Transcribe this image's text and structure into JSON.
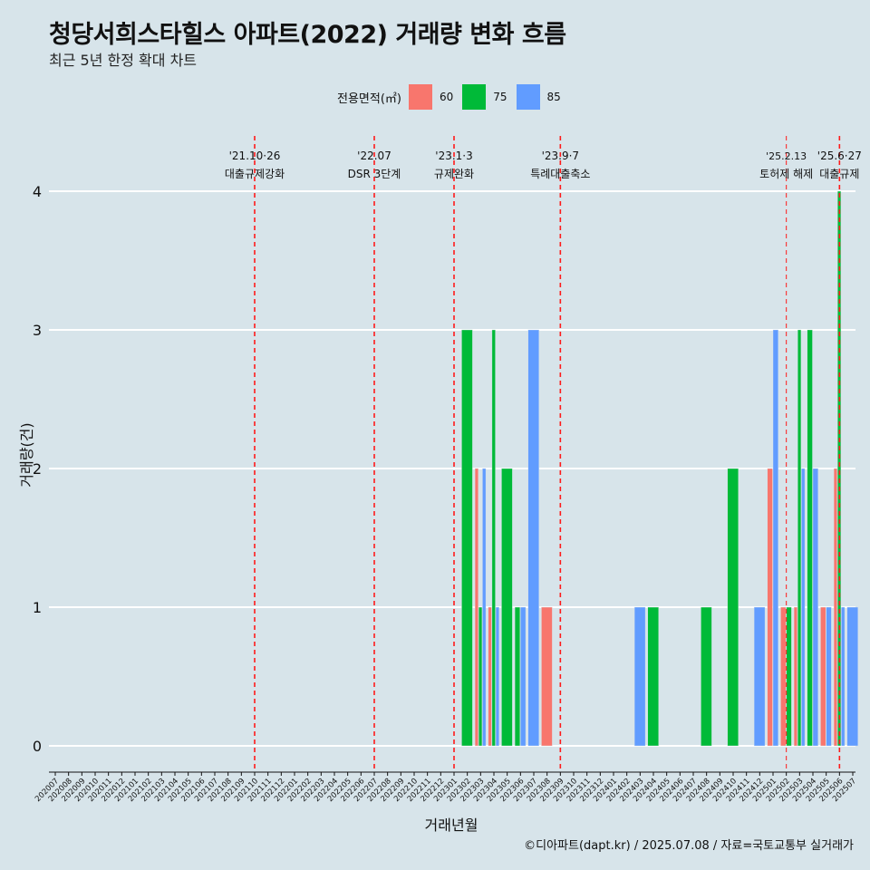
{
  "title": "청당서희스타힐스 아파트(2022) 거래량 변화 흐름",
  "subtitle": "최근 5년 한정 확대 차트",
  "caption": "©디아파트(dapt.kr) / 2025.07.08 / 자료=국토교통부 실거래가",
  "legend": {
    "title": "전용면적(㎡)",
    "items": [
      {
        "label": "60",
        "color": "#f8766d"
      },
      {
        "label": "75",
        "color": "#00ba38"
      },
      {
        "label": "85",
        "color": "#619cff"
      }
    ]
  },
  "chart_data": {
    "type": "bar",
    "xlabel": "거래년월",
    "ylabel": "거래량(건)",
    "ylim": [
      0,
      4
    ],
    "yticks": [
      0,
      1,
      2,
      3,
      4
    ],
    "grid": true,
    "legend_position": "top",
    "categories": [
      "202007",
      "202008",
      "202009",
      "202010",
      "202011",
      "202012",
      "202101",
      "202102",
      "202103",
      "202104",
      "202105",
      "202106",
      "202107",
      "202108",
      "202109",
      "202110",
      "202111",
      "202112",
      "202201",
      "202202",
      "202203",
      "202204",
      "202205",
      "202206",
      "202207",
      "202208",
      "202209",
      "202210",
      "202211",
      "202212",
      "202301",
      "202302",
      "202303",
      "202304",
      "202305",
      "202306",
      "202307",
      "202308",
      "202309",
      "202310",
      "202311",
      "202312",
      "202401",
      "202402",
      "202403",
      "202404",
      "202405",
      "202406",
      "202407",
      "202408",
      "202409",
      "202410",
      "202411",
      "202412",
      "202501",
      "202502",
      "202503",
      "202504",
      "202505",
      "202506",
      "202507"
    ],
    "series": [
      {
        "name": "60",
        "color": "#f8766d",
        "values": {
          "202303": 2,
          "202304": 1,
          "202308": 1,
          "202501": 2,
          "202502": 1,
          "202503": 1,
          "202505": 1,
          "202506": 2
        }
      },
      {
        "name": "75",
        "color": "#00ba38",
        "values": {
          "202302": 3,
          "202303": 1,
          "202304": 3,
          "202305": 2,
          "202306": 1,
          "202404": 1,
          "202408": 1,
          "202410": 2,
          "202502": 1,
          "202503": 3,
          "202504": 3,
          "202506": 4
        }
      },
      {
        "name": "85",
        "color": "#619cff",
        "values": {
          "202303": 2,
          "202304": 1,
          "202306": 1,
          "202307": 3,
          "202403": 1,
          "202412": 1,
          "202501": 3,
          "202503": 2,
          "202504": 2,
          "202505": 1,
          "202506": 1,
          "202507": 1
        }
      }
    ],
    "annotations": [
      {
        "month": "202110",
        "date": "'21.10·26",
        "text": "대출규제강화",
        "style": "dashed"
      },
      {
        "month": "202207",
        "date": "'22.07",
        "text": "DSR 3단계",
        "style": "dashed"
      },
      {
        "month": "202301",
        "date": "'23.1·3",
        "text": "규제완화",
        "style": "dashed"
      },
      {
        "month": "202309",
        "date": "'23.9·7",
        "text": "특례대출축소",
        "style": "dashed"
      },
      {
        "month": "202502",
        "date": "'25.2.13",
        "text": "토허제 해제",
        "style": "thin"
      },
      {
        "month": "202506",
        "date": "'25.6·27",
        "text": "대출규제",
        "style": "dashed"
      }
    ]
  }
}
